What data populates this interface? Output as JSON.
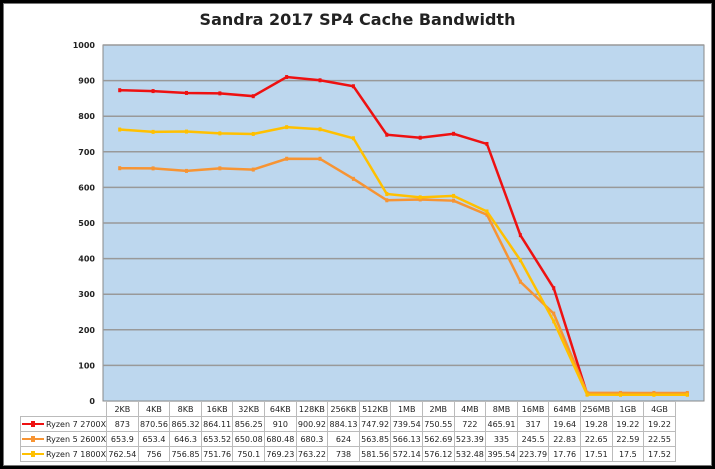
{
  "chart_data": {
    "type": "line",
    "title": "Sandra 2017 SP4 Cache Bandwidth",
    "xlabel": "",
    "ylabel": "",
    "ylim": [
      0,
      1000
    ],
    "yticks": [
      0,
      100,
      200,
      300,
      400,
      500,
      600,
      700,
      800,
      900,
      1000
    ],
    "grid": true,
    "legend_position": "data-table",
    "categories": [
      "2KB",
      "4KB",
      "8KB",
      "16KB",
      "32KB",
      "64KB",
      "128KB",
      "256KB",
      "512KB",
      "1MB",
      "2MB",
      "4MB",
      "8MB",
      "16MB",
      "64MB",
      "256MB",
      "1GB",
      "4GB"
    ],
    "series": [
      {
        "name": "Ryzen 7 2700X",
        "color": "#ee1111",
        "values": [
          873,
          870.56,
          865.32,
          864.11,
          856.25,
          910,
          900.92,
          884.13,
          747.92,
          739.54,
          750.55,
          722,
          465.91,
          317,
          19.64,
          19.28,
          19.22,
          19.22
        ]
      },
      {
        "name": "Ryzen 5 2600X",
        "color": "#f79433",
        "values": [
          653.9,
          653.4,
          646.3,
          653.52,
          650.08,
          680.48,
          680.3,
          624,
          563.85,
          566.13,
          562.69,
          523.39,
          335,
          245.5,
          22.83,
          22.65,
          22.59,
          22.55
        ]
      },
      {
        "name": "Ryzen 7 1800X",
        "color": "#ffc000",
        "values": [
          762.54,
          756,
          756.85,
          751.76,
          750.1,
          769.23,
          763.22,
          738,
          581.56,
          572.14,
          576.12,
          532.48,
          395.54,
          223.79,
          17.76,
          17.51,
          17.5,
          17.52
        ]
      }
    ]
  },
  "colors": {
    "plot_bg": "#bdd7ee",
    "grid": "#999999"
  }
}
